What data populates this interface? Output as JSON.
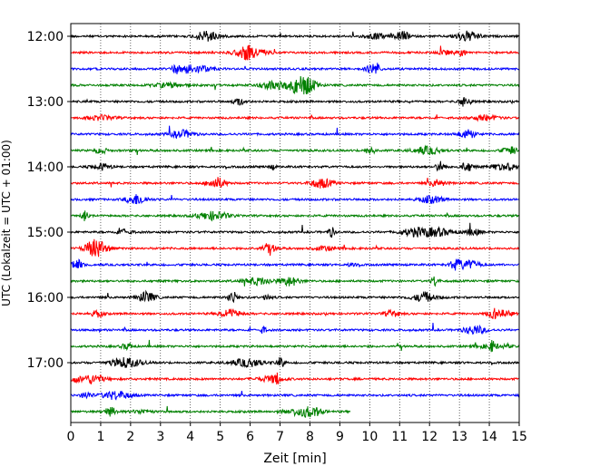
{
  "chart_data": {
    "type": "line",
    "title": "",
    "xlabel": "Zeit  [min]",
    "ylabel": "UTC (Lokalzeit = UTC + 01:00)",
    "xlim": [
      0,
      15
    ],
    "x_ticks": [
      0,
      1,
      2,
      3,
      4,
      5,
      6,
      7,
      8,
      9,
      10,
      11,
      12,
      13,
      14,
      15
    ],
    "y_tick_labels": [
      "12:00",
      "13:00",
      "14:00",
      "15:00",
      "16:00",
      "17:00"
    ],
    "grid": "vertical dotted",
    "trace_colors": [
      "#000000",
      "#ff0000",
      "#0000ff",
      "#008000"
    ],
    "traces": [
      {
        "start": "12:00",
        "end_min": 15,
        "color": "#000000"
      },
      {
        "start": "12:15",
        "end_min": 15,
        "color": "#ff0000"
      },
      {
        "start": "12:30",
        "end_min": 15,
        "color": "#0000ff"
      },
      {
        "start": "12:45",
        "end_min": 15,
        "color": "#008000"
      },
      {
        "start": "13:00",
        "end_min": 15,
        "color": "#000000"
      },
      {
        "start": "13:15",
        "end_min": 15,
        "color": "#ff0000"
      },
      {
        "start": "13:30",
        "end_min": 15,
        "color": "#0000ff"
      },
      {
        "start": "13:45",
        "end_min": 15,
        "color": "#008000"
      },
      {
        "start": "14:00",
        "end_min": 15,
        "color": "#000000"
      },
      {
        "start": "14:15",
        "end_min": 15,
        "color": "#ff0000"
      },
      {
        "start": "14:30",
        "end_min": 15,
        "color": "#0000ff"
      },
      {
        "start": "14:45",
        "end_min": 15,
        "color": "#008000"
      },
      {
        "start": "15:00",
        "end_min": 15,
        "color": "#000000"
      },
      {
        "start": "15:15",
        "end_min": 15,
        "color": "#ff0000"
      },
      {
        "start": "15:30",
        "end_min": 15,
        "color": "#0000ff"
      },
      {
        "start": "15:45",
        "end_min": 15,
        "color": "#008000"
      },
      {
        "start": "16:00",
        "end_min": 15,
        "color": "#000000"
      },
      {
        "start": "16:15",
        "end_min": 15,
        "color": "#ff0000"
      },
      {
        "start": "16:30",
        "end_min": 15,
        "color": "#0000ff"
      },
      {
        "start": "16:45",
        "end_min": 15,
        "color": "#008000"
      },
      {
        "start": "17:00",
        "end_min": 15,
        "color": "#000000"
      },
      {
        "start": "17:15",
        "end_min": 15,
        "color": "#ff0000"
      },
      {
        "start": "17:30",
        "end_min": 15,
        "color": "#0000ff"
      },
      {
        "start": "17:45",
        "end_min": 9.35,
        "color": "#008000"
      }
    ]
  }
}
